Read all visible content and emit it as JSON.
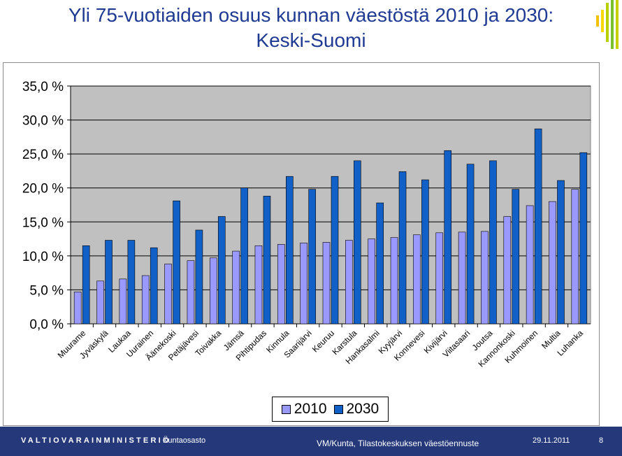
{
  "slide": {
    "title_line1": "Yli 75-vuotiaiden osuus kunnan väestöstä 2010 ja 2030:",
    "title_line2": "Keski-Suomi"
  },
  "footer": {
    "ministry": "VALTIOVARAINMINISTERIÖ",
    "department": "Kuntaosasto",
    "source": "VM/Kunta, Tilastokeskuksen väestöennuste",
    "date": "29.11.2011",
    "page": "8"
  },
  "colors": {
    "title": "#1f3a93",
    "plot_bg": "#c0c0c0",
    "series_2010": "#9999ff",
    "series_2030": "#1060c8",
    "footer_bg": "#25397a"
  },
  "chart_data": {
    "type": "bar",
    "categories": [
      "Muurame",
      "Jyväskylä",
      "Laukaa",
      "Uurainen",
      "Äänekoski",
      "Petäjävesi",
      "Toivakka",
      "Jämsä",
      "Pihtipudas",
      "Kinnula",
      "Saarijärvi",
      "Keuruu",
      "Karstula",
      "Hankasalmi",
      "Kyyjärvi",
      "Konnevesi",
      "Kivijärvi",
      "Viitasaari",
      "Joutsa",
      "Kannonkoski",
      "Kuhmoinen",
      "Multia",
      "Luhanka"
    ],
    "series": [
      {
        "name": "2010",
        "values": [
          4.7,
          6.3,
          6.6,
          7.1,
          8.8,
          9.3,
          9.7,
          10.7,
          11.5,
          11.7,
          11.9,
          12.0,
          12.3,
          12.5,
          12.7,
          13.1,
          13.4,
          13.5,
          13.6,
          15.8,
          17.4,
          18.0,
          19.8
        ]
      },
      {
        "name": "2030",
        "values": [
          11.5,
          12.3,
          12.3,
          11.2,
          18.1,
          13.8,
          15.8,
          20.0,
          18.8,
          21.7,
          19.8,
          21.7,
          24.0,
          17.8,
          22.4,
          21.2,
          25.5,
          23.5,
          24.0,
          19.8,
          28.7,
          21.1,
          25.2
        ]
      }
    ],
    "yticks": [
      "0,0 %",
      "5,0 %",
      "10,0 %",
      "15,0 %",
      "20,0 %",
      "25,0 %",
      "30,0 %",
      "35,0 %"
    ],
    "ylim": [
      0,
      35
    ],
    "ytick_step": 5,
    "grid": true,
    "legend_position": "bottom-center"
  }
}
